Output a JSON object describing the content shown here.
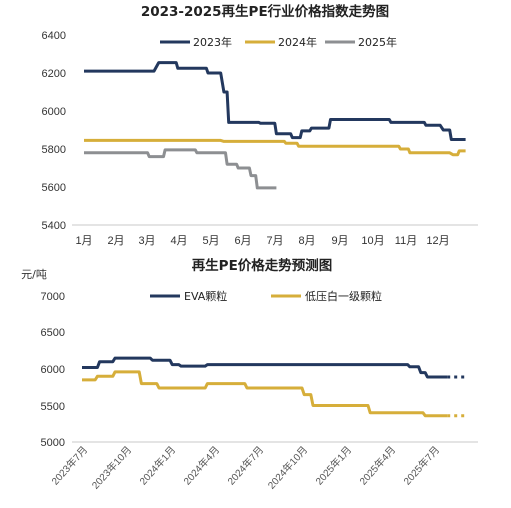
{
  "chart_data": [
    {
      "type": "line",
      "title": "2023-2025再生PE行业价格指数走势图",
      "categories": [
        "1月",
        "2月",
        "3月",
        "4月",
        "5月",
        "6月",
        "7月",
        "8月",
        "9月",
        "10月",
        "11月",
        "12月"
      ],
      "ylim": [
        5400,
        6400
      ],
      "yticks": [
        "5400",
        "5600",
        "5800",
        "6000",
        "6200",
        "6400"
      ],
      "xlabel": "",
      "ylabel": "",
      "legend_position": "top",
      "grid": false,
      "series": [
        {
          "name": "2023年",
          "color": "#23385e",
          "points": [
            [
              1,
              6210
            ],
            [
              3.2,
              6210
            ],
            [
              3.35,
              6255
            ],
            [
              3.9,
              6255
            ],
            [
              3.95,
              6225
            ],
            [
              4.85,
              6225
            ],
            [
              4.9,
              6200
            ],
            [
              5.3,
              6200
            ],
            [
              5.4,
              6100
            ],
            [
              5.5,
              6100
            ],
            [
              5.55,
              5940
            ],
            [
              6.5,
              5940
            ],
            [
              6.55,
              5935
            ],
            [
              7,
              5935
            ],
            [
              7.05,
              5880
            ],
            [
              7.5,
              5880
            ],
            [
              7.55,
              5860
            ],
            [
              7.8,
              5860
            ],
            [
              7.85,
              5895
            ],
            [
              8.1,
              5895
            ],
            [
              8.15,
              5910
            ],
            [
              8.7,
              5910
            ],
            [
              8.75,
              5955
            ],
            [
              10.6,
              5955
            ],
            [
              10.65,
              5940
            ],
            [
              11.7,
              5940
            ],
            [
              11.75,
              5925
            ],
            [
              12.2,
              5925
            ],
            [
              12.3,
              5900
            ],
            [
              12.5,
              5900
            ],
            [
              12.55,
              5850
            ],
            [
              13.0,
              5850
            ]
          ]
        },
        {
          "name": "2024年",
          "color": "#d6ae3a",
          "points": [
            [
              1,
              5845
            ],
            [
              5.3,
              5845
            ],
            [
              5.4,
              5840
            ],
            [
              7.3,
              5840
            ],
            [
              7.35,
              5830
            ],
            [
              7.7,
              5830
            ],
            [
              7.75,
              5815
            ],
            [
              10.9,
              5815
            ],
            [
              10.95,
              5800
            ],
            [
              11.2,
              5800
            ],
            [
              11.25,
              5780
            ],
            [
              12.5,
              5780
            ],
            [
              12.6,
              5770
            ],
            [
              12.75,
              5770
            ],
            [
              12.8,
              5790
            ],
            [
              13.0,
              5790
            ]
          ]
        },
        {
          "name": "2025年",
          "color": "#8d8f92",
          "points": [
            [
              1,
              5780
            ],
            [
              3.0,
              5780
            ],
            [
              3.05,
              5760
            ],
            [
              3.5,
              5760
            ],
            [
              3.55,
              5795
            ],
            [
              4.5,
              5795
            ],
            [
              4.55,
              5780
            ],
            [
              5.45,
              5780
            ],
            [
              5.5,
              5720
            ],
            [
              5.8,
              5720
            ],
            [
              5.85,
              5700
            ],
            [
              6.2,
              5700
            ],
            [
              6.25,
              5660
            ],
            [
              6.4,
              5660
            ],
            [
              6.45,
              5595
            ],
            [
              7.05,
              5595
            ]
          ]
        }
      ]
    },
    {
      "type": "line",
      "title": "再生PE价格走势预测图",
      "unit_label": "元/吨",
      "ylim": [
        5000,
        7000
      ],
      "yticks": [
        "5000",
        "5500",
        "6000",
        "6500",
        "7000"
      ],
      "categories": [
        "2023年7月",
        "2023年10月",
        "2024年1月",
        "2024年4月",
        "2024年7月",
        "2024年10月",
        "2025年1月",
        "2025年4月",
        "2025年7月"
      ],
      "xlabel": "",
      "ylabel": "元/吨",
      "legend_position": "top",
      "grid": false,
      "series": [
        {
          "name": "EVA颗粒",
          "color": "#23385e",
          "points": [
            [
              0,
              6020
            ],
            [
              0.35,
              6020
            ],
            [
              0.4,
              6100
            ],
            [
              0.7,
              6100
            ],
            [
              0.75,
              6150
            ],
            [
              1.55,
              6150
            ],
            [
              1.6,
              6120
            ],
            [
              2.0,
              6120
            ],
            [
              2.05,
              6060
            ],
            [
              2.2,
              6060
            ],
            [
              2.25,
              6040
            ],
            [
              2.8,
              6040
            ],
            [
              2.85,
              6060
            ],
            [
              7.4,
              6060
            ],
            [
              7.45,
              6030
            ],
            [
              7.65,
              6030
            ],
            [
              7.7,
              5950
            ],
            [
              7.8,
              5950
            ],
            [
              7.85,
              5890
            ],
            [
              8.3,
              5890
            ]
          ],
          "forecast": [
            [
              8.3,
              5890
            ],
            [
              8.7,
              5890
            ]
          ]
        },
        {
          "name": "低压白一级颗粒",
          "color": "#d6ae3a",
          "points": [
            [
              0,
              5850
            ],
            [
              0.3,
              5850
            ],
            [
              0.35,
              5900
            ],
            [
              0.7,
              5900
            ],
            [
              0.75,
              5960
            ],
            [
              1.3,
              5960
            ],
            [
              1.35,
              5800
            ],
            [
              1.7,
              5800
            ],
            [
              1.75,
              5740
            ],
            [
              2.8,
              5740
            ],
            [
              2.85,
              5800
            ],
            [
              3.7,
              5800
            ],
            [
              3.75,
              5740
            ],
            [
              5.0,
              5740
            ],
            [
              5.05,
              5650
            ],
            [
              5.2,
              5650
            ],
            [
              5.25,
              5500
            ],
            [
              6.5,
              5500
            ],
            [
              6.55,
              5400
            ],
            [
              7.75,
              5400
            ],
            [
              7.8,
              5360
            ],
            [
              8.3,
              5360
            ]
          ],
          "forecast": [
            [
              8.3,
              5360
            ],
            [
              8.7,
              5360
            ]
          ]
        }
      ]
    }
  ]
}
